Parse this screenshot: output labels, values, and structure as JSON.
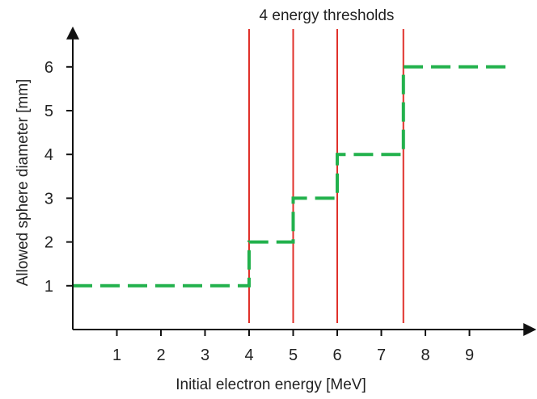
{
  "chart_data": {
    "type": "line",
    "title": "",
    "xlabel": "Initial electron energy [MeV]",
    "ylabel": "Allowed sphere diameter [mm]",
    "xlim": [
      0,
      10.4
    ],
    "ylim": [
      0,
      6.9
    ],
    "x_ticks": [
      1,
      2,
      3,
      4,
      5,
      6,
      7,
      8,
      9
    ],
    "y_ticks": [
      1,
      2,
      3,
      4,
      5,
      6
    ],
    "grid": false,
    "legend": "none",
    "series": [
      {
        "line_style": "dashed",
        "color": "#22b14c",
        "step_points": [
          [
            0,
            1
          ],
          [
            4,
            1
          ],
          [
            4,
            2
          ],
          [
            5,
            2
          ],
          [
            5,
            3
          ],
          [
            6,
            3
          ],
          [
            6,
            4
          ],
          [
            7.5,
            4
          ],
          [
            7.5,
            6
          ],
          [
            10,
            6
          ]
        ]
      }
    ],
    "thresholds": {
      "label": "4 energy thresholds",
      "color": "#e0302a",
      "x": [
        4,
        5,
        6,
        7.5
      ]
    }
  }
}
